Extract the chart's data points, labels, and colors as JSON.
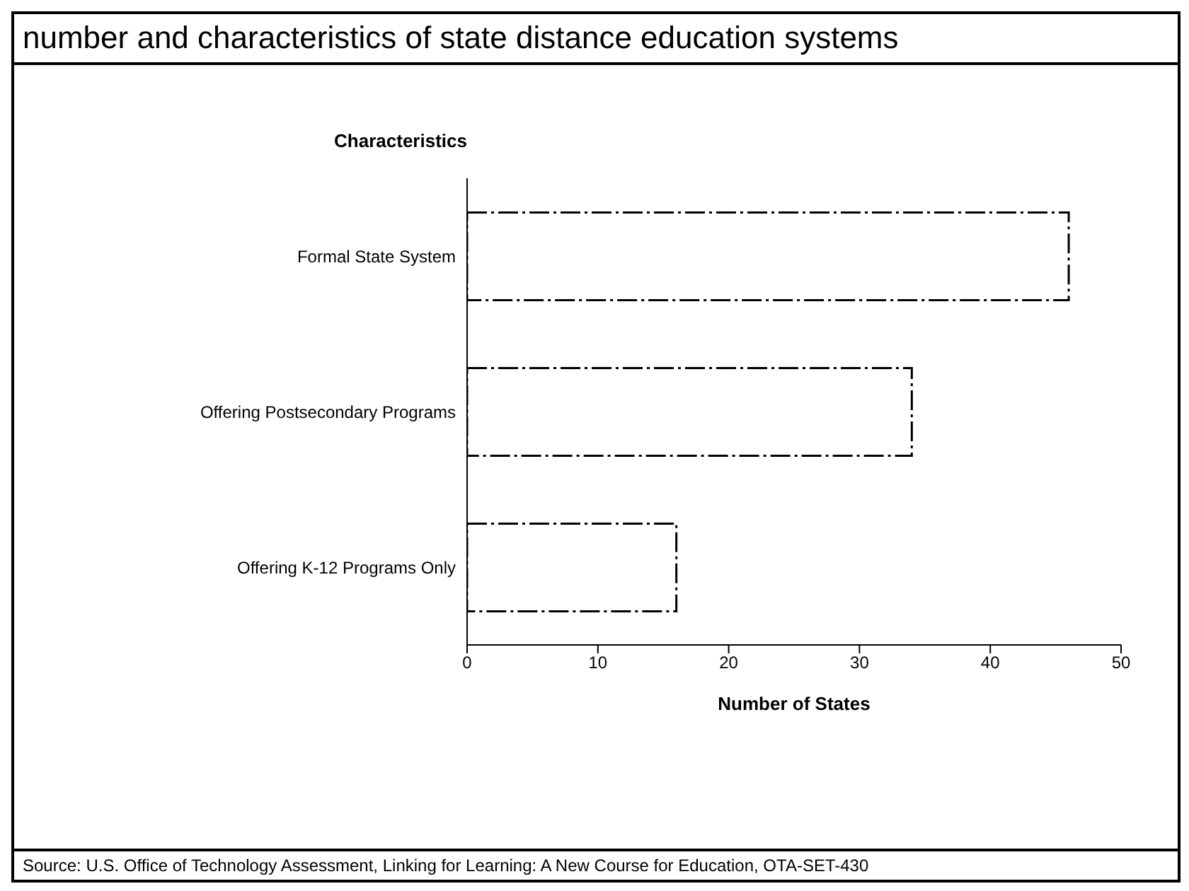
{
  "chart_data": {
    "type": "bar",
    "orientation": "horizontal",
    "title": "number and characteristics of state distance education systems",
    "ylabel": "Characteristics",
    "xlabel": "Number of States",
    "categories": [
      "Formal State System",
      "Offering Postsecondary Programs",
      "Offering K-12 Programs Only"
    ],
    "values": [
      46,
      34,
      16
    ],
    "color": "#ffffff",
    "xlim": [
      0,
      50
    ],
    "xticks": [
      0,
      10,
      20,
      30,
      40,
      50
    ],
    "grid": false,
    "legend": false,
    "annotations": [
      "Source: U.S. Office of Technology Assessment, Linking for Learning: A New Course for Education, OTA-SET-430"
    ]
  }
}
